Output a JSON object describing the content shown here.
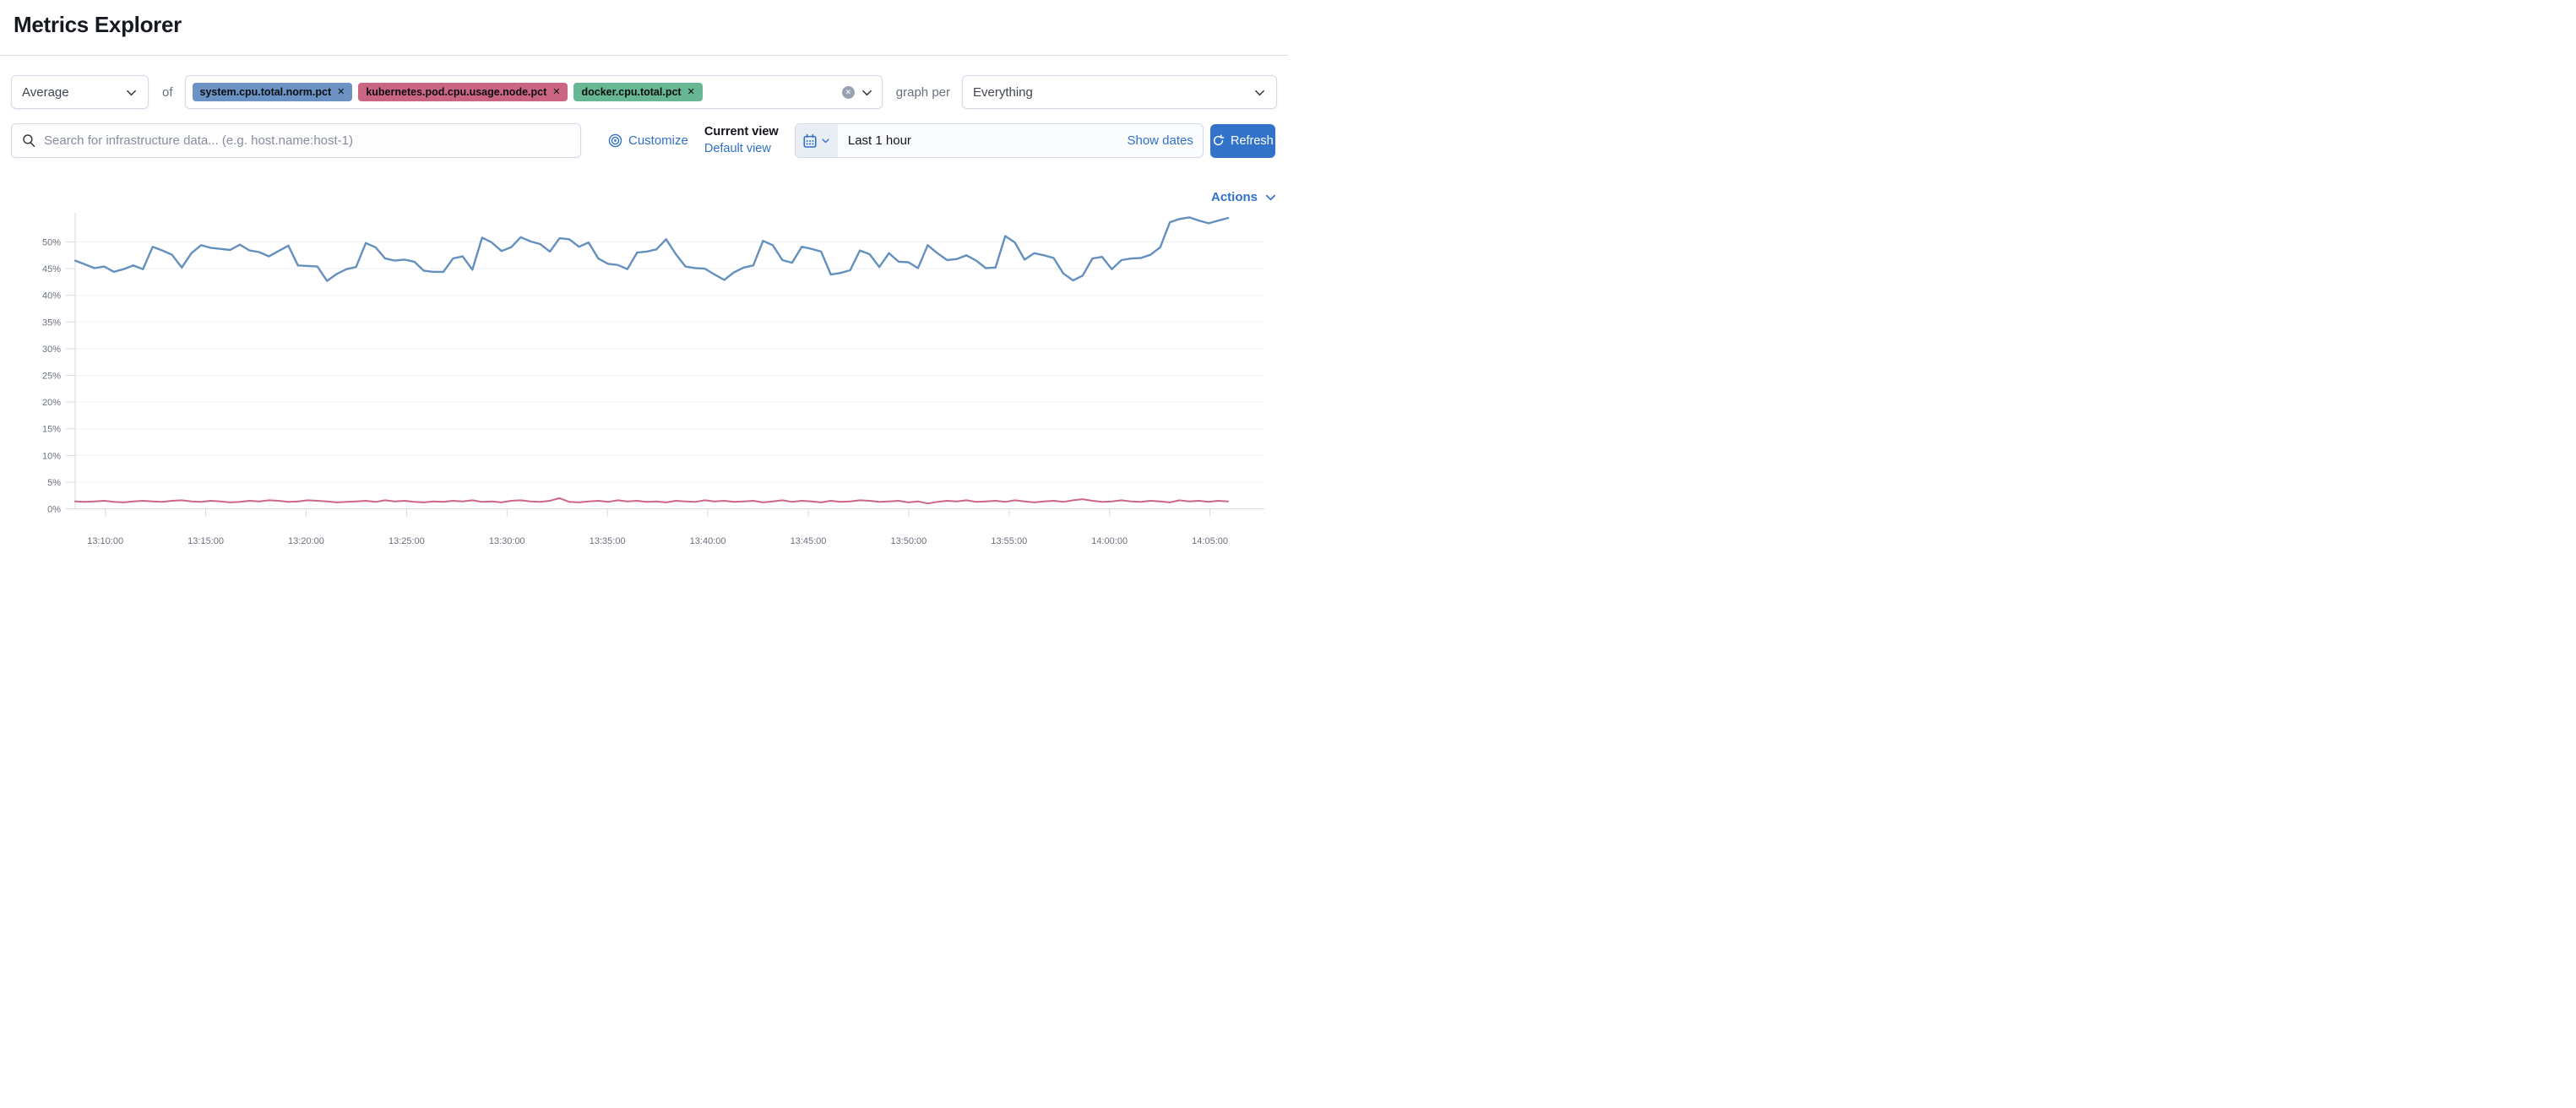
{
  "page": {
    "title": "Metrics Explorer"
  },
  "colors": {
    "link_blue": "#3070C8",
    "refresh_button_bg": "#3273C9",
    "tag_blue": "#6C93C3",
    "tag_pink": "#CA6584",
    "tag_green": "#67B794",
    "line_blue": "#6490BE",
    "line_pink": "#CC6586",
    "axis_text": "#69707D",
    "grid_line": "#EEF1F5",
    "axis_line": "#D5DAE2"
  },
  "controls": {
    "aggregation": {
      "value": "Average"
    },
    "of_label": "of",
    "metrics": [
      {
        "label": "system.cpu.total.norm.pct",
        "remove_icon": "x",
        "color": "#6C93C3"
      },
      {
        "label": "kubernetes.pod.cpu.usage.node.pct",
        "remove_icon": "x",
        "color": "#CA6584"
      },
      {
        "label": "docker.cpu.total.pct",
        "remove_icon": "x",
        "color": "#67B794"
      }
    ],
    "clear_all_icon": "x-in-circle",
    "graph_per_label": "graph per",
    "group_by": {
      "value": "Everything"
    }
  },
  "toolbar": {
    "search_placeholder": "Search for infrastructure data... (e.g. host.name:host-1)",
    "search_icon": "magnifier",
    "customize_label": "Customize",
    "customize_icon": "concentric-circles",
    "current_view_label": "Current view",
    "view_name": "Default view",
    "calendar_icon": "calendar",
    "time_range": "Last 1 hour",
    "show_dates_label": "Show dates",
    "refresh_label": "Refresh",
    "refresh_icon": "refresh-arrow"
  },
  "actions_label": "Actions",
  "chart_data": {
    "type": "line",
    "title": "",
    "legend": "none",
    "grid": "horizontal",
    "x_axis": {
      "tick_labels": [
        "13:10:00",
        "13:15:00",
        "13:20:00",
        "13:25:00",
        "13:30:00",
        "13:35:00",
        "13:40:00",
        "13:45:00",
        "13:50:00",
        "13:55:00",
        "14:00:00",
        "14:05:00"
      ],
      "tick_minutes": [
        790,
        795,
        800,
        805,
        810,
        815,
        820,
        825,
        830,
        835,
        840,
        845
      ],
      "range_minutes": [
        788.5,
        845.9
      ]
    },
    "y_axis": {
      "unit": "%",
      "ylim": [
        0,
        56
      ],
      "tick_values": [
        0,
        5,
        10,
        15,
        20,
        25,
        30,
        35,
        40,
        45,
        50
      ],
      "tick_labels": [
        "0%",
        "5%",
        "10%",
        "15%",
        "20%",
        "25%",
        "30%",
        "35%",
        "40%",
        "45%",
        "50%"
      ]
    },
    "series": [
      {
        "name": "system.cpu.total.norm.pct",
        "color": "#6490BE",
        "values": [
          46.5,
          45.8,
          45.1,
          45.4,
          44.4,
          44.9,
          45.6,
          44.9,
          49.1,
          48.4,
          47.6,
          45.2,
          47.9,
          49.4,
          48.9,
          48.7,
          48.5,
          49.5,
          48.4,
          48.1,
          47.3,
          48.3,
          49.3,
          45.6,
          45.5,
          45.4,
          42.7,
          44.0,
          44.9,
          45.3,
          49.8,
          49.0,
          46.9,
          46.5,
          46.7,
          46.3,
          44.6,
          44.4,
          44.4,
          46.9,
          47.3,
          44.8,
          50.8,
          49.9,
          48.3,
          49.0,
          50.9,
          50.1,
          49.6,
          48.2,
          50.7,
          50.5,
          49.1,
          49.9,
          46.9,
          45.9,
          45.7,
          44.9,
          48.0,
          48.2,
          48.6,
          50.5,
          47.7,
          45.4,
          45.1,
          45.0,
          43.9,
          42.9,
          44.3,
          45.2,
          45.6,
          50.2,
          49.4,
          46.6,
          46.1,
          49.1,
          48.7,
          48.2,
          43.9,
          44.2,
          44.7,
          48.4,
          47.7,
          45.3,
          47.9,
          46.3,
          46.2,
          45.1,
          49.4,
          47.9,
          46.6,
          46.8,
          47.5,
          46.5,
          45.1,
          45.2,
          51.1,
          49.9,
          46.7,
          47.9,
          47.5,
          47.0,
          44.1,
          42.8,
          43.7,
          46.9,
          47.2,
          44.9,
          46.6,
          46.9,
          47.0,
          47.6,
          49.0,
          53.7,
          54.3,
          54.6,
          54.0,
          53.5,
          54.0,
          54.5
        ]
      },
      {
        "name": "kubernetes.pod.cpu.usage.node.pct",
        "color": "#CC6586",
        "values": [
          1.4,
          1.3,
          1.4,
          1.5,
          1.3,
          1.2,
          1.4,
          1.5,
          1.4,
          1.3,
          1.5,
          1.6,
          1.4,
          1.3,
          1.5,
          1.4,
          1.2,
          1.3,
          1.5,
          1.4,
          1.6,
          1.5,
          1.3,
          1.4,
          1.6,
          1.5,
          1.4,
          1.2,
          1.3,
          1.4,
          1.5,
          1.3,
          1.6,
          1.4,
          1.5,
          1.3,
          1.2,
          1.4,
          1.3,
          1.5,
          1.4,
          1.6,
          1.3,
          1.4,
          1.2,
          1.5,
          1.6,
          1.4,
          1.3,
          1.5,
          2.0,
          1.3,
          1.2,
          1.4,
          1.5,
          1.3,
          1.6,
          1.4,
          1.5,
          1.3,
          1.4,
          1.2,
          1.5,
          1.4,
          1.3,
          1.6,
          1.4,
          1.5,
          1.3,
          1.4,
          1.5,
          1.2,
          1.4,
          1.6,
          1.3,
          1.5,
          1.4,
          1.2,
          1.5,
          1.3,
          1.4,
          1.6,
          1.5,
          1.3,
          1.4,
          1.5,
          1.2,
          1.4,
          1.0,
          1.3,
          1.5,
          1.4,
          1.6,
          1.3,
          1.4,
          1.5,
          1.3,
          1.6,
          1.4,
          1.2,
          1.4,
          1.5,
          1.3,
          1.6,
          1.8,
          1.5,
          1.3,
          1.4,
          1.6,
          1.4,
          1.3,
          1.5,
          1.4,
          1.2,
          1.6,
          1.4,
          1.5,
          1.3,
          1.5,
          1.4
        ]
      }
    ]
  }
}
